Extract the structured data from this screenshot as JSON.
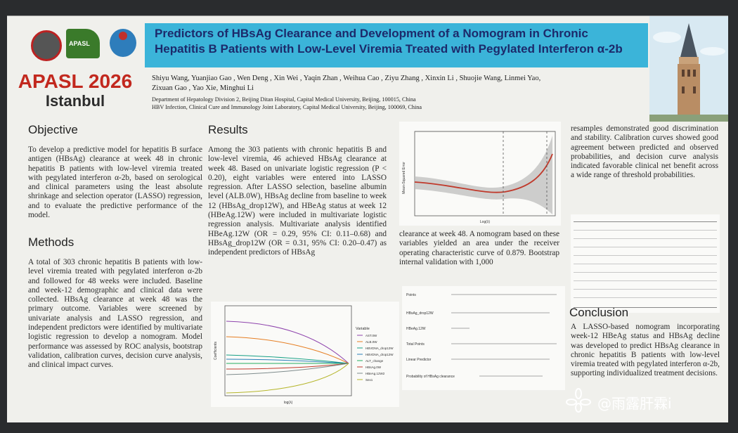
{
  "header": {
    "conference": "APASL 2026",
    "city": "Istanbul",
    "title": "Predictors of HBsAg Clearance and Development of a Nomogram in Chronic Hepatitis B Patients with Low-Level Viremia Treated with Pegylated Interferon α-2b",
    "authors_line1": "Shiyu Wang, Yuanjiao Gao , Wen Deng , Xin Wei , Yaqin Zhan , Weihua Cao , Ziyu Zhang , Xinxin Li , Shuojie Wang, Linmei Yao,",
    "authors_line2": "Zixuan Gao , Yao Xie, Minghui Li",
    "affiliation_1": "Department of Hepatology Division 2, Beijing Ditan Hospital, Capital Medical University, Beijing, 100015, China",
    "affiliation_2": "HBV Infection, Clinical Cure and Immunology Joint Laboratory, Capital Medical University, Beijing, 100069, China"
  },
  "objective": {
    "heading": "Objective",
    "text": "To develop a predictive model for hepatitis B surface antigen (HBsAg) clearance at week 48 in chronic hepatitis B patients with low-level viremia treated with pegylated interferon α-2b, based on serological and clinical parameters using the least absolute shrinkage and selection operator (LASSO) regression, and to evaluate the predictive performance of the model."
  },
  "methods": {
    "heading": "Methods",
    "text": "A total of 303 chronic hepatitis B patients with low-level viremia treated with pegylated interferon α-2b and followed for 48 weeks were included. Baseline and week-12 demographic and clinical data were collected. HBsAg clearance at week 48 was the primary outcome. Variables were screened by univariate analysis and LASSO regression, and independent predictors were identified by multivariate logistic regression to develop a nomogram. Model performance was assessed by ROC analysis, bootstrap validation, calibration curves, decision curve analysis, and clinical impact curves."
  },
  "results": {
    "heading": "Results",
    "text": "Among the 303 patients with chronic hepatitis B and low-level viremia, 46 achieved HBsAg clearance at week 48. Based on univariate logistic regression (P < 0.20), eight variables were entered into LASSO regression. After LASSO selection, baseline albumin level (ALB.0W), HBsAg decline from baseline to week 12 (HBsAg_drop12W), and HBeAg status at week 12 (HBeAg.12W) were included in multivariate logistic regression analysis. Multivariate analysis identified HBeAg.12W (OR = 0.29, 95% CI: 0.11–0.68) and HBsAg_drop12W (OR = 0.31, 95% CI: 0.20–0.47) as independent predictors of HBsAg",
    "text_cont": "clearance at week 48. A nomogram based on these variables yielded an area under the receiver operating characteristic curve of 0.879. Bootstrap internal validation with 1,000",
    "text_cont2": "resamples demonstrated good discrimination and stability. Calibration curves showed good agreement between predicted and observed probabilities, and decision curve analysis indicated favorable clinical net benefit across a wide range of threshold probabilities."
  },
  "conclusion": {
    "heading": "Conclusion",
    "text": "A LASSO-based nomogram incorporating week-12 HBeAg status and HBsAg decline was developed to predict HBsAg clearance in chronic hepatitis B patients with low-level viremia treated with pegylated interferon α-2b, supporting individualized treatment decisions."
  },
  "figures": {
    "cv_xlabel": "Log(λ)",
    "cv_ylabel": "Mean-Squared Error",
    "path_xlabel": "log(λ)",
    "path_ylabel": "Coefficients",
    "path_legend_title": "Variable",
    "path_legend": [
      "AST.0W",
      "ALB.0W",
      "HBVDNA_drop12W",
      "HBVDNA_drop12W",
      "ALT_change",
      "HBsAg.0W",
      "HBeAg.12W2",
      "Sex1"
    ],
    "nomo_rows": [
      "Points",
      "HBsAg_drop12W",
      "HBeAg.12W",
      "Total Points",
      "Linear Predictor",
      "Probability of HBsAg clearance"
    ]
  },
  "watermark": "@雨露肝霖i"
}
